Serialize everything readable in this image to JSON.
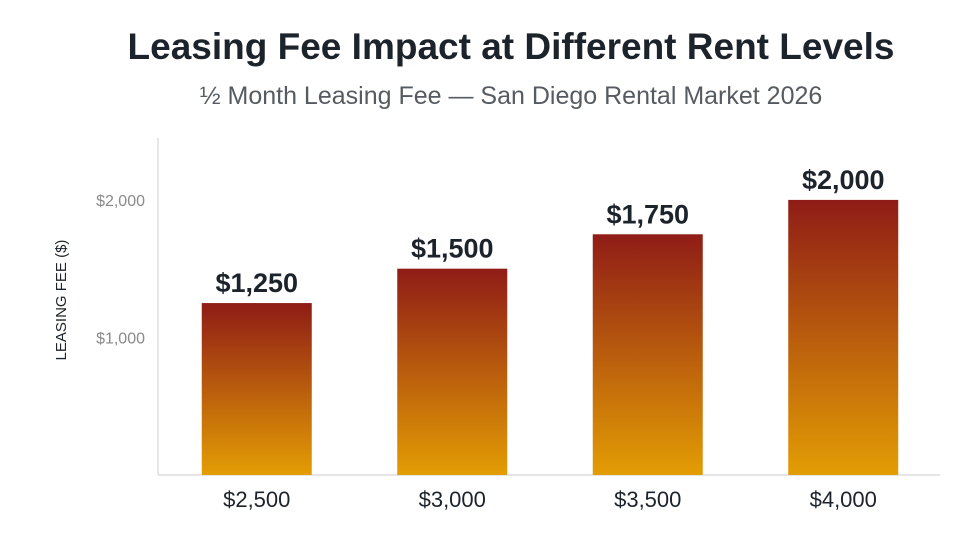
{
  "chart_data": {
    "type": "bar",
    "title": "Leasing Fee Impact at Different Rent Levels",
    "subtitle": "½ Month Leasing Fee — San Diego Rental Market 2026",
    "xlabel": "",
    "ylabel": "LEASING FEE ($)",
    "categories": [
      "$2,500",
      "$3,000",
      "$3,500",
      "$4,000"
    ],
    "values": [
      1250,
      1500,
      1750,
      2000
    ],
    "data_labels": [
      "$1,250",
      "$1,500",
      "$1,750",
      "$2,000"
    ],
    "yticks": [
      1000,
      2000
    ],
    "ytick_labels": [
      "$1,000",
      "$2,000"
    ],
    "ylim": [
      0,
      2450
    ],
    "grid": false,
    "colors": {
      "bar_top": "#8f1c16",
      "bar_bottom": "#e39d04",
      "axis": "#dddddd",
      "label": "#1c232b",
      "tick": "#8a8a8a"
    }
  }
}
